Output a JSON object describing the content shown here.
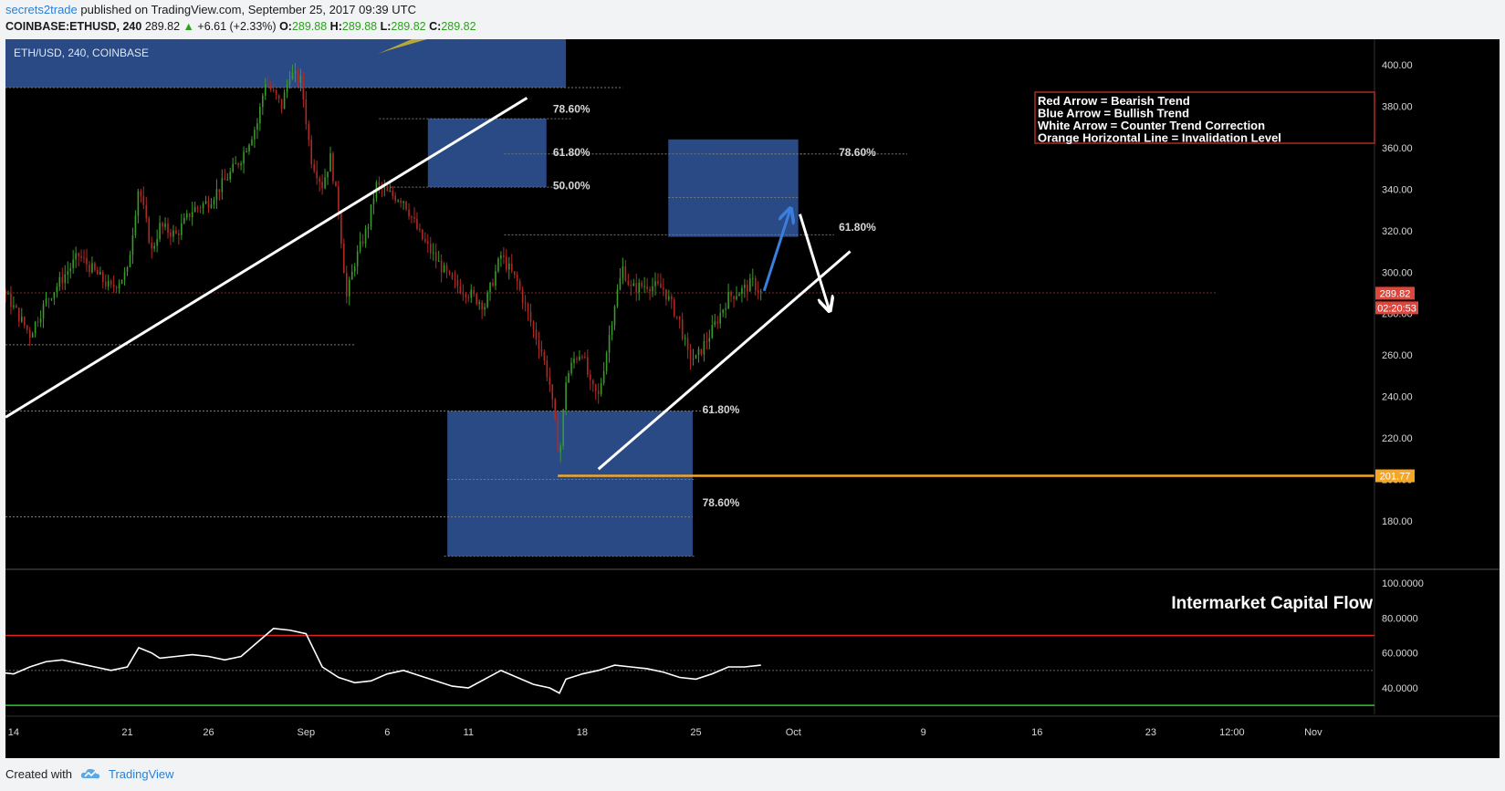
{
  "header": {
    "author": "secrets2trade",
    "published_text": "published on TradingView.com, September 25, 2017 09:39 UTC",
    "symbol": "COINBASE:ETHUSD, 240",
    "last": "289.82",
    "up_arrow": "▲",
    "change": "+6.61 (+2.33%)",
    "o_label": "O:",
    "o_val": "289.88",
    "h_label": "H:",
    "h_val": "289.88",
    "l_label": "L:",
    "l_val": "289.82",
    "c_label": "C:",
    "c_val": "289.82"
  },
  "footer": {
    "created_with": "Created with",
    "brand": "TradingView",
    "brand_icon": "tradingview-cloud-icon"
  },
  "chart_data": [
    {
      "type": "candlestick",
      "title": "ETH/USD, 240, COINBASE",
      "ylim": [
        160,
        410
      ],
      "y_ticks": [
        "400.00",
        "380.00",
        "360.00",
        "340.00",
        "320.00",
        "300.00",
        "280.00",
        "260.00",
        "240.00",
        "220.00",
        "200.00",
        "180.00"
      ],
      "y_tick_values": [
        400,
        380,
        360,
        340,
        320,
        300,
        280,
        260,
        240,
        220,
        200,
        180
      ],
      "x_ticks": [
        "14",
        "21",
        "26",
        "Sep",
        "6",
        "11",
        "18",
        "25",
        "Oct",
        "9",
        "16",
        "23",
        "12:00",
        "Nov"
      ],
      "x_tick_days": [
        14,
        21,
        26,
        32,
        37,
        42,
        49,
        56,
        62,
        70,
        77,
        84,
        89,
        94
      ],
      "price_path": [
        [
          8,
          290
        ],
        [
          9,
          300
        ],
        [
          10,
          312
        ],
        [
          11,
          303
        ],
        [
          12,
          316
        ],
        [
          13,
          296
        ],
        [
          14,
          283
        ],
        [
          15,
          270
        ],
        [
          16,
          286
        ],
        [
          17,
          297
        ],
        [
          18,
          308
        ],
        [
          19,
          300
        ],
        [
          20,
          292
        ],
        [
          21,
          300
        ],
        [
          21.7,
          342
        ],
        [
          22.5,
          310
        ],
        [
          23,
          322
        ],
        [
          24,
          318
        ],
        [
          25,
          330
        ],
        [
          26,
          334
        ],
        [
          27,
          344
        ],
        [
          28,
          355
        ],
        [
          29,
          372
        ],
        [
          29.5,
          392
        ],
        [
          30.5,
          380
        ],
        [
          31,
          396
        ],
        [
          31.7,
          392
        ],
        [
          32.3,
          355
        ],
        [
          33,
          342
        ],
        [
          33.5,
          355
        ],
        [
          34,
          330
        ],
        [
          34.5,
          288
        ],
        [
          35,
          305
        ],
        [
          35.8,
          322
        ],
        [
          36.3,
          342
        ],
        [
          37,
          338
        ],
        [
          38,
          335
        ],
        [
          39,
          318
        ],
        [
          40,
          306
        ],
        [
          41,
          295
        ],
        [
          42,
          290
        ],
        [
          43,
          284
        ],
        [
          44,
          308
        ],
        [
          45,
          295
        ],
        [
          46,
          272
        ],
        [
          46.5,
          262
        ],
        [
          47,
          246
        ],
        [
          47.6,
          210
        ],
        [
          48,
          248
        ],
        [
          48.5,
          258
        ],
        [
          49,
          262
        ],
        [
          49.5,
          245
        ],
        [
          50,
          240
        ],
        [
          50.5,
          262
        ],
        [
          51,
          285
        ],
        [
          51.5,
          302
        ],
        [
          52,
          292
        ],
        [
          53,
          294
        ],
        [
          54,
          292
        ],
        [
          55,
          276
        ],
        [
          55.5,
          260
        ],
        [
          56,
          258
        ],
        [
          57,
          272
        ],
        [
          58,
          288
        ],
        [
          59,
          292
        ],
        [
          59.5,
          295
        ],
        [
          60,
          290
        ]
      ],
      "overlays": {
        "last_price": "289.82",
        "countdown": "02:20:53",
        "invalidation_level": "201.77",
        "fib_labels": [
          "78.60%",
          "61.80%",
          "50.00%",
          "78.60%",
          "61.80%",
          "61.80%",
          "78.60%"
        ]
      },
      "legend": {
        "placement": "top-right",
        "lines": [
          "Red Arrow = Bearish Trend",
          "Blue Arrow = Bullish Trend",
          "White Arrow = Counter Trend Correction",
          "Orange Horizontal Line = Invalidation Level"
        ]
      },
      "colors": {
        "background": "#000000",
        "zone": "#2a4a85",
        "bull_candle": "#3a9a2a",
        "bear_candle": "#b02a25",
        "invalidation": "#f5a623",
        "price_label": "#e0453b",
        "bullish_arrow": "#3a7fe0"
      }
    },
    {
      "type": "line",
      "title": "Intermarket Capital Flow",
      "ylim": [
        20,
        105
      ],
      "y_ticks": [
        "100.0000",
        "80.0000",
        "60.0000",
        "40.0000"
      ],
      "y_tick_values": [
        100,
        80,
        60,
        40
      ],
      "levels": {
        "upper": 70,
        "middle": 50,
        "lower": 30
      },
      "series": [
        {
          "x": [
            8,
            9,
            10,
            11,
            12,
            13,
            14,
            15,
            16,
            17,
            18,
            19,
            20,
            21,
            21.7,
            22.5,
            23,
            24,
            25,
            26,
            27,
            28,
            29,
            30,
            31,
            32,
            33,
            34,
            35,
            36,
            37,
            38,
            39,
            40,
            41,
            42,
            43,
            44,
            45,
            46,
            47,
            47.6,
            48,
            49,
            50,
            51,
            52,
            53,
            54,
            55,
            56,
            57,
            58,
            59,
            60
          ],
          "y": [
            72,
            68,
            60,
            55,
            52,
            49,
            48,
            52,
            55,
            56,
            54,
            52,
            50,
            52,
            63,
            60,
            57,
            58,
            59,
            58,
            56,
            58,
            66,
            74,
            73,
            71,
            52,
            46,
            43,
            44,
            48,
            50,
            47,
            44,
            41,
            40,
            45,
            50,
            46,
            42,
            40,
            37,
            45,
            48,
            50,
            53,
            52,
            51,
            49,
            46,
            45,
            48,
            52,
            52,
            53
          ]
        }
      ],
      "colors": {
        "line": "#ffffff",
        "upper": "#e0231c",
        "lower": "#2ec926"
      }
    }
  ]
}
